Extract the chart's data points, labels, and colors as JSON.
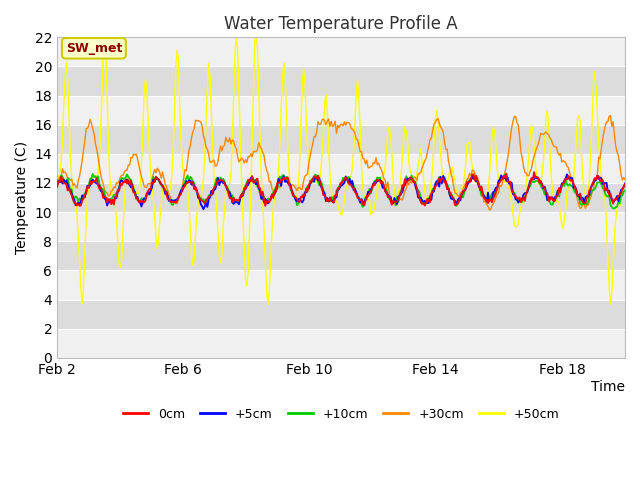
{
  "title": "Water Temperature Profile A",
  "xlabel": "Time",
  "ylabel": "Temperature (C)",
  "ylim": [
    0,
    22
  ],
  "yticks": [
    0,
    2,
    4,
    6,
    8,
    10,
    12,
    14,
    16,
    18,
    20,
    22
  ],
  "background_color": "#ffffff",
  "plot_bg_light": "#f0f0f0",
  "plot_bg_dark": "#dcdcdc",
  "grid_color": "#ffffff",
  "legend_labels": [
    "0cm",
    "+5cm",
    "+10cm",
    "+30cm",
    "+50cm"
  ],
  "legend_colors": [
    "#ff0000",
    "#0000ff",
    "#00cc00",
    "#ff8800",
    "#ffff00"
  ],
  "annotation_text": "SW_met",
  "annotation_color": "#8b0000",
  "annotation_bg": "#ffffcc",
  "annotation_edge": "#cccc00",
  "xtick_labels": [
    "Feb 2",
    "Feb 6",
    "Feb 10",
    "Feb 14",
    "Feb 18"
  ],
  "title_fontsize": 12,
  "axis_fontsize": 10,
  "line_width": 1.0
}
